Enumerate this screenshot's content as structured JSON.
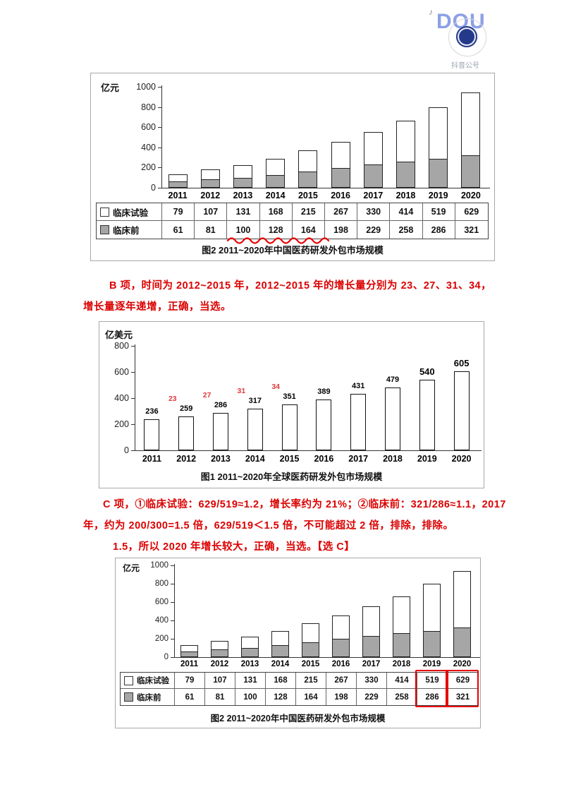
{
  "logo": {
    "note": "♪",
    "brand": "DOU",
    "subtitle": "抖音公号"
  },
  "chart_data": [
    {
      "id": "china_crdmo_top",
      "type": "bar",
      "subtype": "stacked_bar_with_table",
      "unit": "亿元",
      "ylim": [
        0,
        1000
      ],
      "yticks": [
        1000,
        800,
        600,
        400,
        200,
        0
      ],
      "categories": [
        "2011",
        "2012",
        "2013",
        "2014",
        "2015",
        "2016",
        "2017",
        "2018",
        "2019",
        "2020"
      ],
      "series": [
        {
          "name": "临床试验",
          "color": "#ffffff",
          "values": [
            79,
            107,
            131,
            168,
            215,
            267,
            330,
            414,
            519,
            629
          ]
        },
        {
          "name": "临床前",
          "color": "#a6a6a6",
          "values": [
            61,
            81,
            100,
            128,
            164,
            198,
            229,
            258,
            286,
            321
          ]
        }
      ],
      "caption": "图2  2011~2020年中国医药研发外包市场规模",
      "annotations": {
        "wavy_underline_row": "临床前",
        "wavy_underline_years": [
          "2013",
          "2014",
          "2015"
        ],
        "wavy_color": "#e60000"
      }
    },
    {
      "id": "global_crdmo",
      "type": "bar",
      "unit": "亿美元",
      "ylim": [
        0,
        800
      ],
      "yticks": [
        800,
        600,
        400,
        200,
        0
      ],
      "categories": [
        "2011",
        "2012",
        "2013",
        "2014",
        "2015",
        "2016",
        "2017",
        "2018",
        "2019",
        "2020"
      ],
      "values": [
        236,
        259,
        286,
        317,
        351,
        389,
        431,
        479,
        540,
        605
      ],
      "growth_labels": [
        {
          "year": "2012",
          "text": "23"
        },
        {
          "year": "2013",
          "text": "27"
        },
        {
          "year": "2014",
          "text": "31"
        },
        {
          "year": "2015",
          "text": "34"
        }
      ],
      "caption": "图1  2011~2020年全球医药研发外包市场规模"
    },
    {
      "id": "china_crdmo_bottom",
      "type": "bar",
      "subtype": "stacked_bar_with_table",
      "unit": "亿元",
      "ylim": [
        0,
        1000
      ],
      "yticks": [
        1000,
        800,
        600,
        400,
        200,
        0
      ],
      "categories": [
        "2011",
        "2012",
        "2013",
        "2014",
        "2015",
        "2016",
        "2017",
        "2018",
        "2019",
        "2020"
      ],
      "series": [
        {
          "name": "临床试验",
          "color": "#ffffff",
          "values": [
            79,
            107,
            131,
            168,
            215,
            267,
            330,
            414,
            519,
            629
          ]
        },
        {
          "name": "临床前",
          "color": "#a6a6a6",
          "values": [
            61,
            81,
            100,
            128,
            164,
            198,
            229,
            258,
            286,
            321
          ]
        }
      ],
      "caption": "图2  2011~2020年中国医药研发外包市场规模",
      "annotations": {
        "highlight_years": [
          "2019",
          "2020"
        ],
        "highlight_color": "#e60000"
      }
    }
  ],
  "notes": [
    {
      "color": "#dc0000",
      "lines": [
        "B 项，时间为 2012~2015 年，2012~2015 年的增长量分别为 23、27、31、34，",
        "增长量逐年递增，正确，当选。"
      ]
    },
    {
      "color": "#dc0000",
      "lines": [
        "C 项，①临床试验：629/519≈1.2，增长率约为 21%；②临床前：321/286≈1.1，2017",
        "年，约为 200/300=1.5 倍，629/519＜1.5 倍，不可能超过 2 倍，排除，排除。",
        "1.5，所以 2020 年增长较大，正确，当选。【选 C】"
      ]
    }
  ]
}
